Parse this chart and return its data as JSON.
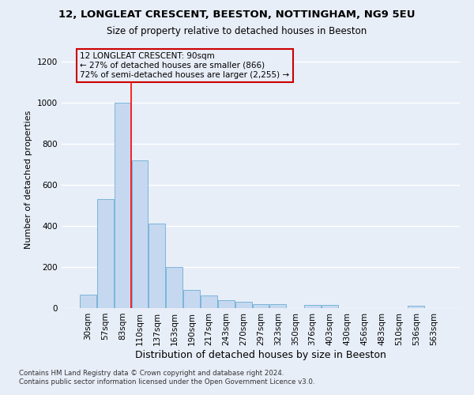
{
  "title": "12, LONGLEAT CRESCENT, BEESTON, NOTTINGHAM, NG9 5EU",
  "subtitle": "Size of property relative to detached houses in Beeston",
  "xlabel": "Distribution of detached houses by size in Beeston",
  "ylabel": "Number of detached properties",
  "footer_line1": "Contains HM Land Registry data © Crown copyright and database right 2024.",
  "footer_line2": "Contains public sector information licensed under the Open Government Licence v3.0.",
  "bar_labels": [
    "30sqm",
    "57sqm",
    "83sqm",
    "110sqm",
    "137sqm",
    "163sqm",
    "190sqm",
    "217sqm",
    "243sqm",
    "270sqm",
    "297sqm",
    "323sqm",
    "350sqm",
    "376sqm",
    "403sqm",
    "430sqm",
    "456sqm",
    "483sqm",
    "510sqm",
    "536sqm",
    "563sqm"
  ],
  "bar_values": [
    65,
    530,
    1000,
    720,
    410,
    200,
    90,
    60,
    40,
    30,
    20,
    18,
    0,
    15,
    15,
    0,
    0,
    0,
    0,
    10,
    0
  ],
  "bar_color": "#c5d8f0",
  "bar_edge_color": "#6baed6",
  "ylim": [
    0,
    1250
  ],
  "yticks": [
    0,
    200,
    400,
    600,
    800,
    1000,
    1200
  ],
  "property_line_label": "12 LONGLEAT CRESCENT: 90sqm",
  "annotation_line1": "← 27% of detached houses are smaller (866)",
  "annotation_line2": "72% of semi-detached houses are larger (2,255) →",
  "annotation_box_color": "#cc0000",
  "background_color": "#e8eef8",
  "grid_color": "#d0d8e8"
}
